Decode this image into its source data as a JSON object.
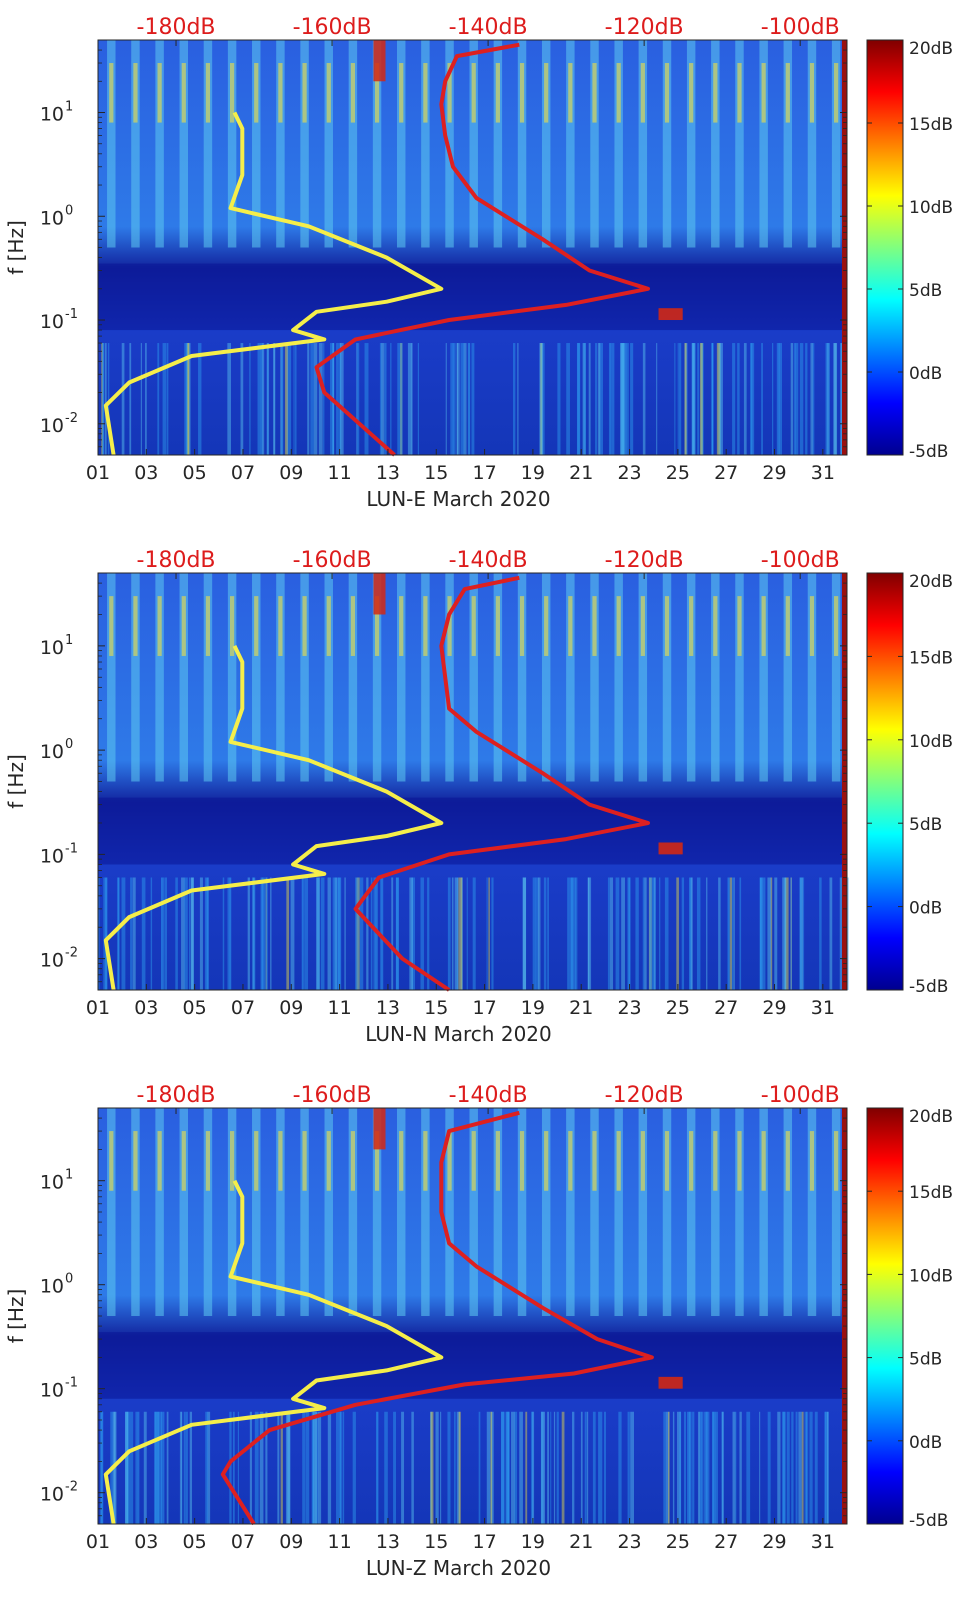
{
  "chart_data": [
    {
      "type": "heatmap",
      "station": "LUN-E",
      "xlabel": "LUN-E March 2020",
      "ylabel": "f [Hz]",
      "x_ticks": [
        "01",
        "03",
        "05",
        "07",
        "09",
        "11",
        "13",
        "15",
        "17",
        "19",
        "21",
        "23",
        "25",
        "27",
        "29",
        "31"
      ],
      "y_ticks": [
        {
          "label": "10",
          "exp": "1",
          "value": 10
        },
        {
          "label": "10",
          "exp": "0",
          "value": 1
        },
        {
          "label": "10",
          "exp": "-1",
          "value": 0.1
        },
        {
          "label": "10",
          "exp": "-2",
          "value": 0.01
        }
      ],
      "ylim_hz": [
        0.005,
        50
      ],
      "xlim_day": [
        1,
        32
      ],
      "top_ticks": [
        "-180dB",
        "-160dB",
        "-140dB",
        "-120dB",
        "-100dB"
      ],
      "top_range_db": [
        -190,
        -94
      ],
      "colorbar": {
        "ticks": [
          "20dB",
          "15dB",
          "10dB",
          "5dB",
          "0dB",
          "-5dB"
        ],
        "range_db": [
          -5,
          20
        ]
      },
      "yellow_curve": [
        {
          "db": -172.5,
          "f": 10
        },
        {
          "db": -171.5,
          "f": 7
        },
        {
          "db": -171.5,
          "f": 2.5
        },
        {
          "db": -173,
          "f": 1.2
        },
        {
          "db": -163,
          "f": 0.8
        },
        {
          "db": -153,
          "f": 0.4
        },
        {
          "db": -146,
          "f": 0.2
        },
        {
          "db": -153,
          "f": 0.15
        },
        {
          "db": -162,
          "f": 0.12
        },
        {
          "db": -165,
          "f": 0.08
        },
        {
          "db": -161,
          "f": 0.065
        },
        {
          "db": -178,
          "f": 0.045
        },
        {
          "db": -186,
          "f": 0.025
        },
        {
          "db": -189,
          "f": 0.015
        },
        {
          "db": -188,
          "f": 0.005
        }
      ],
      "red_curve": [
        {
          "db": -136,
          "f": 45
        },
        {
          "db": -144,
          "f": 35
        },
        {
          "db": -145.5,
          "f": 20
        },
        {
          "db": -146,
          "f": 12
        },
        {
          "db": -145.5,
          "f": 6
        },
        {
          "db": -144.5,
          "f": 3
        },
        {
          "db": -141.5,
          "f": 1.5
        },
        {
          "db": -133,
          "f": 0.6
        },
        {
          "db": -127,
          "f": 0.3
        },
        {
          "db": -119.5,
          "f": 0.2
        },
        {
          "db": -130,
          "f": 0.14
        },
        {
          "db": -145,
          "f": 0.1
        },
        {
          "db": -157,
          "f": 0.065
        },
        {
          "db": -162,
          "f": 0.035
        },
        {
          "db": -161,
          "f": 0.02
        },
        {
          "db": -152,
          "f": 0.005
        }
      ]
    },
    {
      "type": "heatmap",
      "station": "LUN-N",
      "xlabel": "LUN-N March 2020",
      "ylabel": "f [Hz]",
      "x_ticks": [
        "01",
        "03",
        "05",
        "07",
        "09",
        "11",
        "13",
        "15",
        "17",
        "19",
        "21",
        "23",
        "25",
        "27",
        "29",
        "31"
      ],
      "y_ticks": [
        {
          "label": "10",
          "exp": "1",
          "value": 10
        },
        {
          "label": "10",
          "exp": "0",
          "value": 1
        },
        {
          "label": "10",
          "exp": "-1",
          "value": 0.1
        },
        {
          "label": "10",
          "exp": "-2",
          "value": 0.01
        }
      ],
      "ylim_hz": [
        0.005,
        50
      ],
      "xlim_day": [
        1,
        32
      ],
      "top_ticks": [
        "-180dB",
        "-160dB",
        "-140dB",
        "-120dB",
        "-100dB"
      ],
      "top_range_db": [
        -190,
        -94
      ],
      "colorbar": {
        "ticks": [
          "20dB",
          "15dB",
          "10dB",
          "5dB",
          "0dB",
          "-5dB"
        ],
        "range_db": [
          -5,
          20
        ]
      },
      "yellow_curve": [
        {
          "db": -172.5,
          "f": 10
        },
        {
          "db": -171.5,
          "f": 7
        },
        {
          "db": -171.5,
          "f": 2.5
        },
        {
          "db": -173,
          "f": 1.2
        },
        {
          "db": -163,
          "f": 0.8
        },
        {
          "db": -153,
          "f": 0.4
        },
        {
          "db": -146,
          "f": 0.2
        },
        {
          "db": -153,
          "f": 0.15
        },
        {
          "db": -162,
          "f": 0.12
        },
        {
          "db": -165,
          "f": 0.08
        },
        {
          "db": -161,
          "f": 0.065
        },
        {
          "db": -178,
          "f": 0.045
        },
        {
          "db": -186,
          "f": 0.025
        },
        {
          "db": -189,
          "f": 0.015
        },
        {
          "db": -188,
          "f": 0.005
        }
      ],
      "red_curve": [
        {
          "db": -136,
          "f": 45
        },
        {
          "db": -143,
          "f": 35
        },
        {
          "db": -145,
          "f": 20
        },
        {
          "db": -146,
          "f": 10
        },
        {
          "db": -145.5,
          "f": 5
        },
        {
          "db": -145,
          "f": 2.5
        },
        {
          "db": -141.5,
          "f": 1.5
        },
        {
          "db": -133,
          "f": 0.6
        },
        {
          "db": -127,
          "f": 0.3
        },
        {
          "db": -119.5,
          "f": 0.2
        },
        {
          "db": -130,
          "f": 0.14
        },
        {
          "db": -145,
          "f": 0.1
        },
        {
          "db": -154,
          "f": 0.06
        },
        {
          "db": -157,
          "f": 0.03
        },
        {
          "db": -151,
          "f": 0.01
        },
        {
          "db": -145,
          "f": 0.005
        }
      ]
    },
    {
      "type": "heatmap",
      "station": "LUN-Z",
      "xlabel": "LUN-Z March 2020",
      "ylabel": "f [Hz]",
      "x_ticks": [
        "01",
        "03",
        "05",
        "07",
        "09",
        "11",
        "13",
        "15",
        "17",
        "19",
        "21",
        "23",
        "25",
        "27",
        "29",
        "31"
      ],
      "y_ticks": [
        {
          "label": "10",
          "exp": "1",
          "value": 10
        },
        {
          "label": "10",
          "exp": "0",
          "value": 1
        },
        {
          "label": "10",
          "exp": "-1",
          "value": 0.1
        },
        {
          "label": "10",
          "exp": "-2",
          "value": 0.01
        }
      ],
      "ylim_hz": [
        0.005,
        50
      ],
      "xlim_day": [
        1,
        32
      ],
      "top_ticks": [
        "-180dB",
        "-160dB",
        "-140dB",
        "-120dB",
        "-100dB"
      ],
      "top_range_db": [
        -190,
        -94
      ],
      "colorbar": {
        "ticks": [
          "20dB",
          "15dB",
          "10dB",
          "5dB",
          "0dB",
          "-5dB"
        ],
        "range_db": [
          -5,
          20
        ]
      },
      "yellow_curve": [
        {
          "db": -172.5,
          "f": 10
        },
        {
          "db": -171.5,
          "f": 7
        },
        {
          "db": -171.5,
          "f": 2.5
        },
        {
          "db": -173,
          "f": 1.2
        },
        {
          "db": -163,
          "f": 0.8
        },
        {
          "db": -153,
          "f": 0.4
        },
        {
          "db": -146,
          "f": 0.2
        },
        {
          "db": -153,
          "f": 0.15
        },
        {
          "db": -162,
          "f": 0.12
        },
        {
          "db": -165,
          "f": 0.08
        },
        {
          "db": -161,
          "f": 0.065
        },
        {
          "db": -178,
          "f": 0.045
        },
        {
          "db": -186,
          "f": 0.025
        },
        {
          "db": -189,
          "f": 0.015
        },
        {
          "db": -188,
          "f": 0.005
        }
      ],
      "red_curve": [
        {
          "db": -136,
          "f": 45
        },
        {
          "db": -145,
          "f": 30
        },
        {
          "db": -146,
          "f": 15
        },
        {
          "db": -146,
          "f": 5
        },
        {
          "db": -145,
          "f": 2.5
        },
        {
          "db": -141.5,
          "f": 1.5
        },
        {
          "db": -133,
          "f": 0.6
        },
        {
          "db": -126,
          "f": 0.3
        },
        {
          "db": -119,
          "f": 0.2
        },
        {
          "db": -129,
          "f": 0.14
        },
        {
          "db": -143,
          "f": 0.11
        },
        {
          "db": -157,
          "f": 0.07
        },
        {
          "db": -168,
          "f": 0.04
        },
        {
          "db": -173,
          "f": 0.02
        },
        {
          "db": -174,
          "f": 0.015
        },
        {
          "db": -170,
          "f": 0.005
        }
      ]
    }
  ],
  "colors": {
    "heatmap_base": "#1a4fd0",
    "heatmap_dark": "#0a1496",
    "stripe_light": "#5cc8f0",
    "stripe_yellow": "#f0e040",
    "stripe_red": "#d22814",
    "yellow_line": "#f5ee4a",
    "red_line": "#dd2020",
    "top_tick_text": "#dd1c1c",
    "axis_text": "#262626"
  }
}
